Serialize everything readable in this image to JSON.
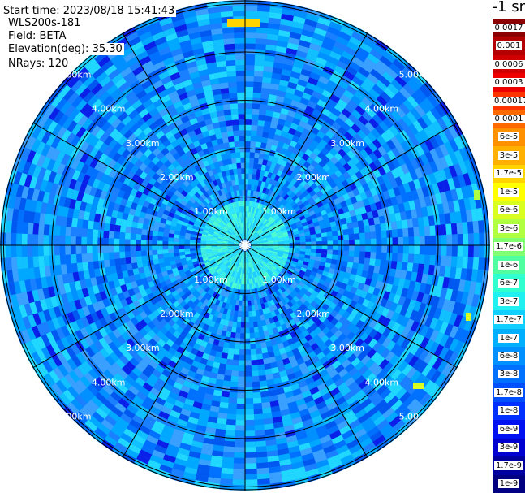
{
  "info": {
    "start_time": "Start time: 2023/08/18 15:41:43",
    "instrument": "WLS200s-181",
    "field": "Field: BETA",
    "elevation_label": "Elevation(deg):",
    "elevation_value": "35.30",
    "nrays": "NRays: 120"
  },
  "unit_label": "-1 sr",
  "range_labels": [
    "1.00km",
    "2.00km",
    "3.00km",
    "4.00km",
    "5.00km"
  ],
  "colorbar": [
    {
      "label": "0.0017",
      "color": "#8b0000"
    },
    {
      "label": "0.001",
      "color": "#b30000"
    },
    {
      "label": "0.0006",
      "color": "#d00000"
    },
    {
      "label": "0.0003",
      "color": "#ee0000"
    },
    {
      "label": "0.00017",
      "color": "#ff3300"
    },
    {
      "label": "0.0001",
      "color": "#ff6a00"
    },
    {
      "label": "6e-5",
      "color": "#ff9000"
    },
    {
      "label": "3e-5",
      "color": "#ffb000"
    },
    {
      "label": "1.7e-5",
      "color": "#ffd400"
    },
    {
      "label": "1e-5",
      "color": "#ffff00"
    },
    {
      "label": "6e-6",
      "color": "#d8ff20"
    },
    {
      "label": "3e-6",
      "color": "#b0ff40"
    },
    {
      "label": "1.7e-6",
      "color": "#80ff70"
    },
    {
      "label": "1e-6",
      "color": "#50ffa0"
    },
    {
      "label": "6e-7",
      "color": "#30ffd0"
    },
    {
      "label": "3e-7",
      "color": "#20f0f0"
    },
    {
      "label": "1.7e-7",
      "color": "#10d0ff"
    },
    {
      "label": "1e-7",
      "color": "#00b0ff"
    },
    {
      "label": "6e-8",
      "color": "#0090ff"
    },
    {
      "label": "3e-8",
      "color": "#0070ff"
    },
    {
      "label": "1.7e-8",
      "color": "#0050ff"
    },
    {
      "label": "1e-8",
      "color": "#0030ff"
    },
    {
      "label": "6e-9",
      "color": "#0010f0"
    },
    {
      "label": "3e-9",
      "color": "#0000d0"
    },
    {
      "label": "1.7e-9",
      "color": "#0000a0"
    },
    {
      "label": "1e-9",
      "color": "#000080"
    }
  ]
}
